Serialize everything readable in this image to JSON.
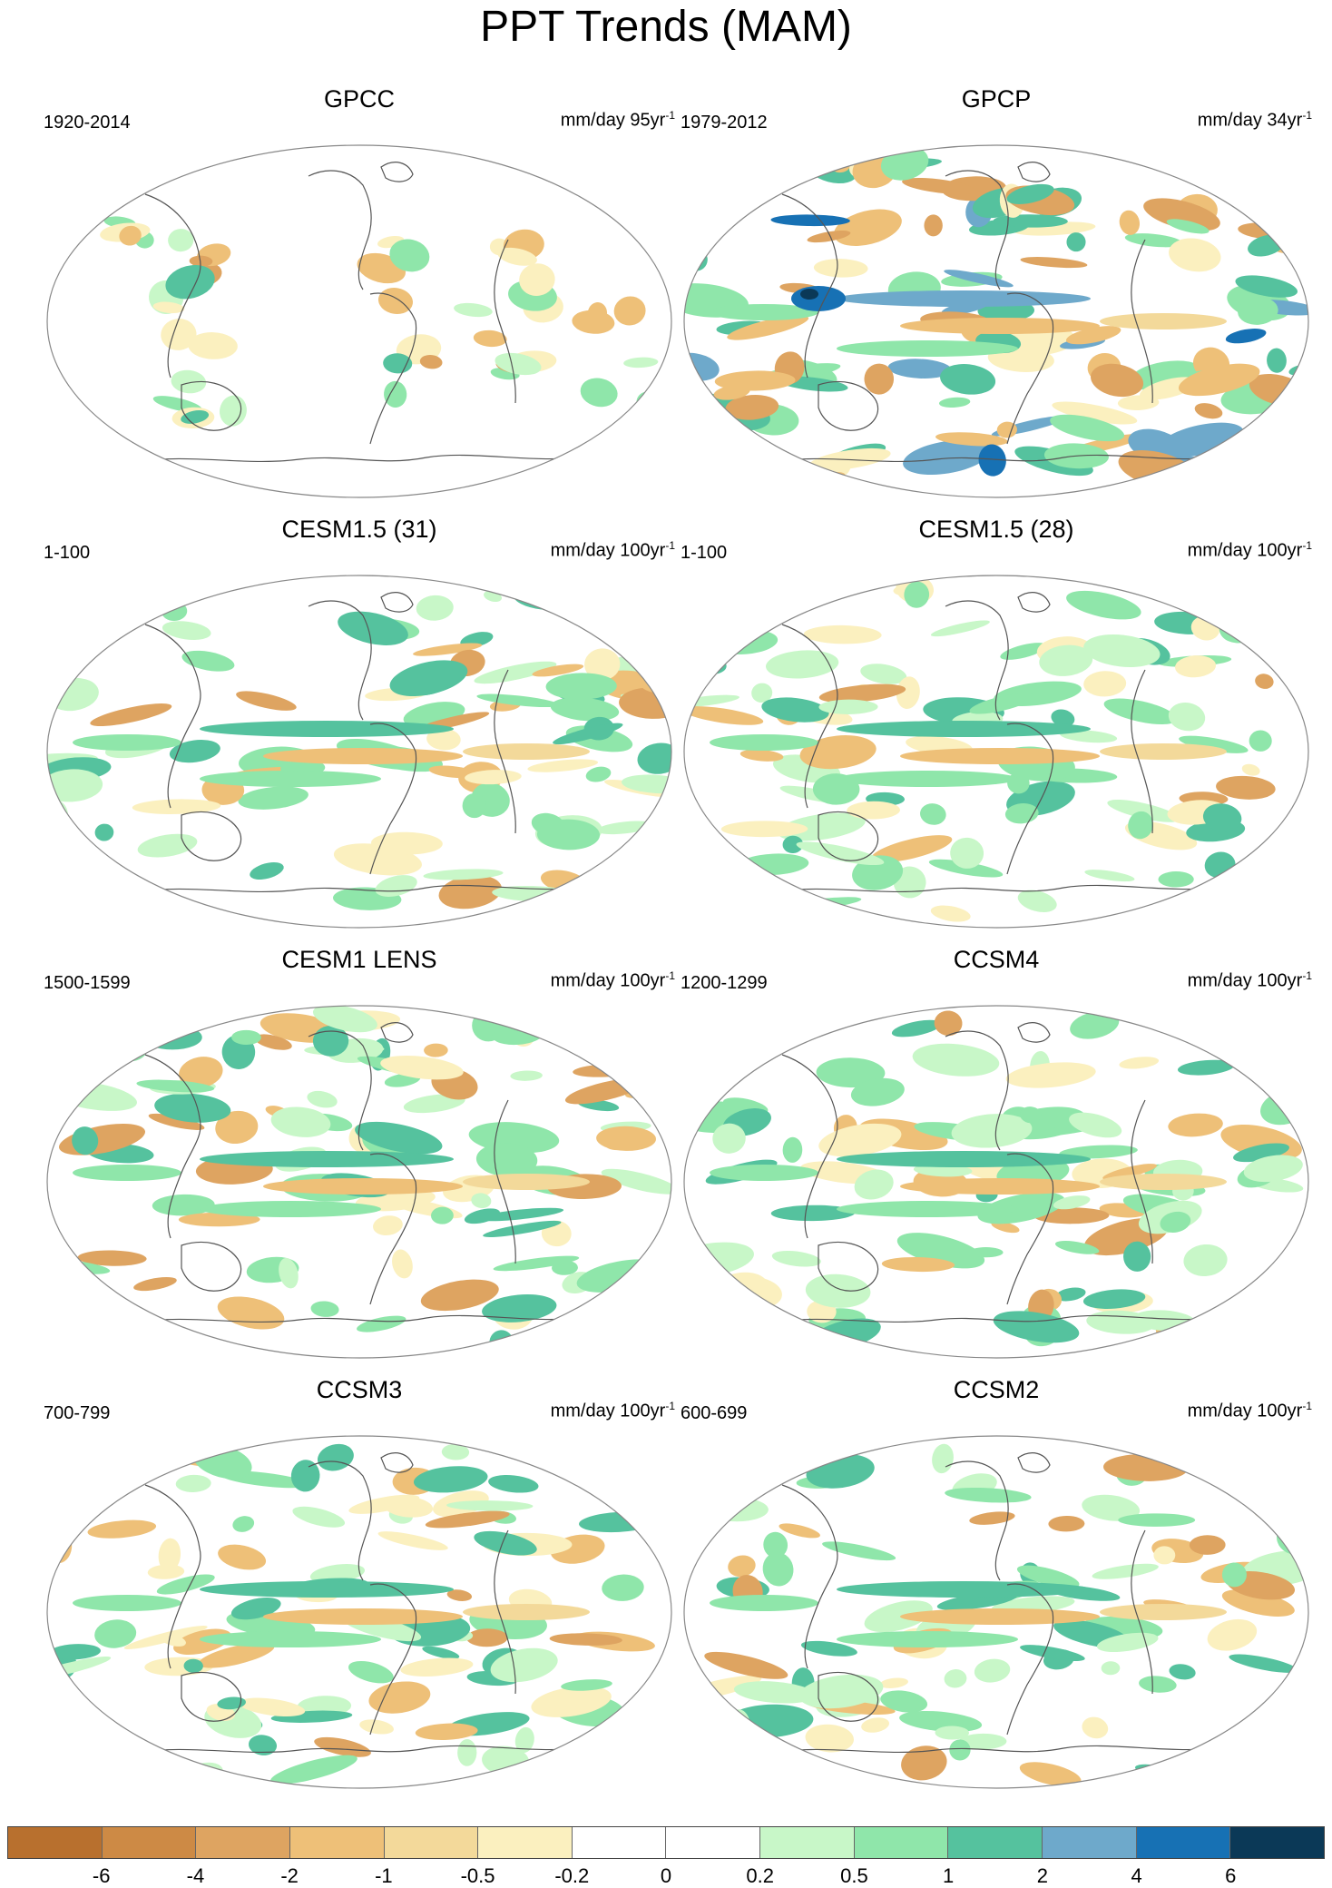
{
  "title": "PPT Trends (MAM)",
  "colors": {
    "brown_dark": "#b8702e",
    "brown": "#cd8a45",
    "tan_dark": "#dea461",
    "tan": "#eec078",
    "tan_light": "#f3d99a",
    "cream": "#fbf0bf",
    "white": "#ffffff",
    "green_pale": "#c8f7c8",
    "green_light": "#8fe6aa",
    "green_mid": "#55c29e",
    "blue_light": "#6ea9cb",
    "blue": "#1771b4",
    "navy": "#0b3957"
  },
  "panels": [
    {
      "title": "GPCC",
      "period": "1920-2014",
      "units": "mm/day 95yr",
      "units_exp": "-1",
      "pattern": "land"
    },
    {
      "title": "GPCP",
      "period": "1979-2012",
      "units": "mm/day 34yr",
      "units_exp": "-1",
      "pattern": "strong"
    },
    {
      "title": "CESM1.5 (31)",
      "period": "1-100",
      "units": "mm/day 100yr",
      "units_exp": "-1",
      "pattern": "model"
    },
    {
      "title": "CESM1.5 (28)",
      "period": "1-100",
      "units": "mm/day 100yr",
      "units_exp": "-1",
      "pattern": "model"
    },
    {
      "title": "CESM1 LENS",
      "period": "1500-1599",
      "units": "mm/day 100yr",
      "units_exp": "-1",
      "pattern": "model"
    },
    {
      "title": "CCSM4",
      "period": "1200-1299",
      "units": "mm/day 100yr",
      "units_exp": "-1",
      "pattern": "model"
    },
    {
      "title": "CCSM3",
      "period": "700-799",
      "units": "mm/day 100yr",
      "units_exp": "-1",
      "pattern": "model"
    },
    {
      "title": "CCSM2",
      "period": "600-699",
      "units": "mm/day 100yr",
      "units_exp": "-1",
      "pattern": "model"
    }
  ],
  "colorbar": {
    "labels": [
      "-6",
      "-4",
      "-2",
      "-1",
      "-0.5",
      "-0.2",
      "0",
      "0.2",
      "0.5",
      "1",
      "2",
      "4",
      "6"
    ],
    "boxes": [
      "#b8702e",
      "#cd8a45",
      "#dea461",
      "#eec078",
      "#f3d99a",
      "#fbf0bf",
      "#ffffff",
      "#ffffff",
      "#c8f7c8",
      "#8fe6aa",
      "#55c29e",
      "#6ea9cb",
      "#1771b4",
      "#0b3957"
    ]
  }
}
